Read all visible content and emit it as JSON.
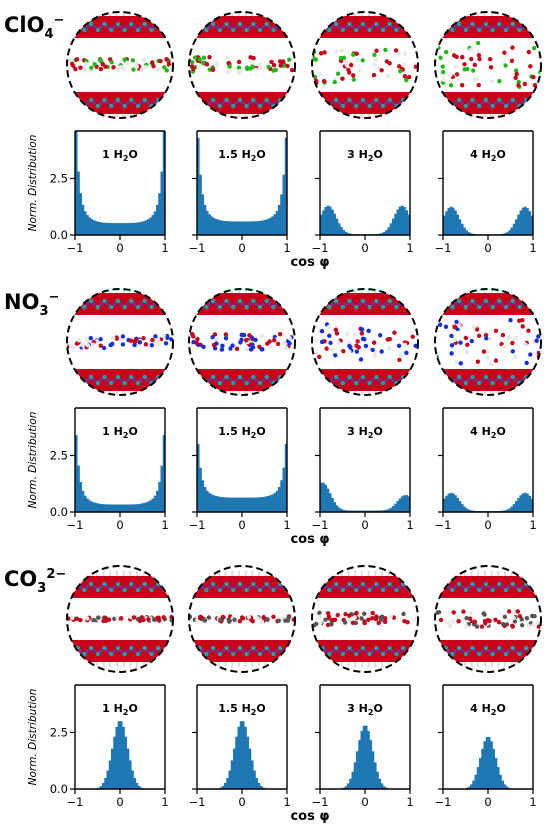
{
  "chart_data": [
    {
      "type": "bar",
      "ion_label": "ClO",
      "ion_sub": "4",
      "ion_sup": "−",
      "ylabel": "Norm. Distribution",
      "xlabel": "cos φ",
      "xlim": [
        -1,
        1
      ],
      "ylim": [
        0,
        4.6
      ],
      "x_ticks": [
        "−1",
        "0",
        "1"
      ],
      "y_ticks": [
        "0.0",
        "2.5"
      ],
      "molecule_colors": [
        "#c9001a",
        "#1f9fa0",
        "#ffffff",
        "#6b2fa8",
        "#22b81c"
      ],
      "panels": [
        {
          "label_main": "1 H",
          "label_sub": "2",
          "label_tail": "O",
          "peak": 4.6,
          "shape": "edges",
          "floor": 0.12
        },
        {
          "label_main": "1.5 H",
          "label_sub": "2",
          "label_tail": "O",
          "peak": 4.3,
          "shape": "edges",
          "floor": 0.15
        },
        {
          "label_main": "3 H",
          "label_sub": "2",
          "label_tail": "O",
          "peak": 1.3,
          "shape": "shoulders",
          "floor": 0.1
        },
        {
          "label_main": "4 H",
          "label_sub": "2",
          "label_tail": "O",
          "peak": 1.25,
          "shape": "shoulders",
          "floor": 0.08
        }
      ]
    },
    {
      "type": "bar",
      "ion_label": "NO",
      "ion_sub": "3",
      "ion_sup": "−",
      "ylabel": "Norm. Distribution",
      "xlabel": "cos φ",
      "xlim": [
        -1,
        1
      ],
      "ylim": [
        0,
        4.6
      ],
      "x_ticks": [
        "−1",
        "0",
        "1"
      ],
      "y_ticks": [
        "0.0",
        "2.5"
      ],
      "molecule_colors": [
        "#c9001a",
        "#1f9fa0",
        "#ffffff",
        "#6b2fa8",
        "#1530d8"
      ],
      "panels": [
        {
          "label_main": "1 H",
          "label_sub": "2",
          "label_tail": "O",
          "peak": 3.4,
          "shape": "edges",
          "floor": 0.1
        },
        {
          "label_main": "1.5 H",
          "label_sub": "2",
          "label_tail": "O",
          "peak": 3.0,
          "shape": "edges",
          "floor": 0.25
        },
        {
          "label_main": "3 H",
          "label_sub": "2",
          "label_tail": "O",
          "peak": 1.3,
          "shape": "shoulders-left",
          "floor": 0.05
        },
        {
          "label_main": "4 H",
          "label_sub": "2",
          "label_tail": "O",
          "peak": 0.85,
          "shape": "shoulders",
          "floor": 0.2
        }
      ]
    },
    {
      "type": "bar",
      "ion_label": "CO",
      "ion_sub": "3",
      "ion_sup": "2−",
      "ylabel": "Norm. Distribution",
      "xlabel": "cos φ",
      "xlim": [
        -1,
        1
      ],
      "ylim": [
        0,
        4.6
      ],
      "x_ticks": [
        "−1",
        "0",
        "1"
      ],
      "y_ticks": [
        "0.0",
        "2.5"
      ],
      "molecule_colors": [
        "#c9001a",
        "#1f9fa0",
        "#ffffff",
        "#6b2fa8",
        "#555555"
      ],
      "panels": [
        {
          "label_main": "1 H",
          "label_sub": "2",
          "label_tail": "O",
          "peak": 3.0,
          "shape": "gauss",
          "floor": 0
        },
        {
          "label_main": "1.5 H",
          "label_sub": "2",
          "label_tail": "O",
          "peak": 3.0,
          "shape": "gauss",
          "floor": 0
        },
        {
          "label_main": "3 H",
          "label_sub": "2",
          "label_tail": "O",
          "peak": 2.8,
          "shape": "gauss",
          "floor": 0
        },
        {
          "label_main": "4 H",
          "label_sub": "2",
          "label_tail": "O",
          "peak": 2.3,
          "shape": "gauss",
          "floor": 0
        }
      ]
    }
  ]
}
